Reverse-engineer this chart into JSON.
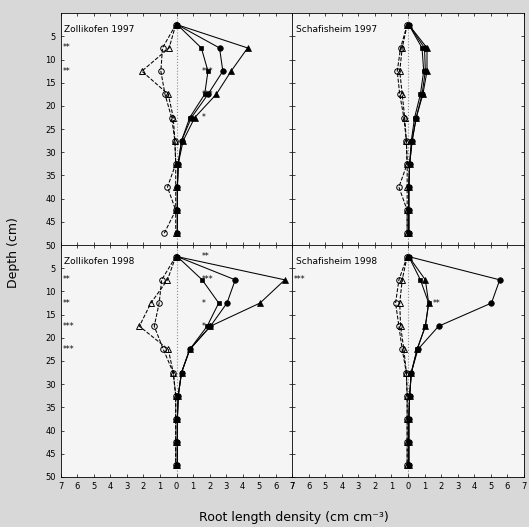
{
  "panels": [
    {
      "title": "Zollikofen 1997",
      "row": 0,
      "col": 0,
      "depths": [
        2.5,
        7.5,
        12.5,
        17.5,
        22.5,
        27.5,
        32.5,
        37.5,
        42.5,
        47.5
      ],
      "open_triangle": [
        0.05,
        0.45,
        2.1,
        0.5,
        0.2,
        0.1,
        0.05,
        0.05,
        0.05,
        0.05
      ],
      "open_circle": [
        0.05,
        0.85,
        0.95,
        0.7,
        0.3,
        0.1,
        0.05,
        0.55,
        0.05,
        0.75
      ],
      "filled_square": [
        0.05,
        1.5,
        1.9,
        1.7,
        0.8,
        0.3,
        0.1,
        0.05,
        0.05,
        0.05
      ],
      "filled_circle": [
        0.05,
        2.6,
        2.8,
        1.9,
        0.9,
        0.3,
        0.1,
        0.05,
        0.05,
        0.05
      ],
      "filled_triangle": [
        0.05,
        4.3,
        3.3,
        2.4,
        1.1,
        0.4,
        0.1,
        0.05,
        0.05,
        0.05
      ],
      "sig_left": [
        null,
        "**",
        "**",
        null,
        null,
        null,
        null,
        null,
        null,
        null
      ],
      "sig_right": [
        null,
        null,
        "***",
        "***",
        "*",
        null,
        null,
        null,
        null,
        null
      ]
    },
    {
      "title": "Schafisheim 1997",
      "row": 0,
      "col": 1,
      "depths": [
        2.5,
        7.5,
        12.5,
        17.5,
        22.5,
        27.5,
        32.5,
        37.5,
        42.5,
        47.5
      ],
      "open_triangle": [
        0.05,
        0.35,
        0.5,
        0.35,
        0.2,
        0.1,
        0.05,
        0.05,
        0.05,
        0.05
      ],
      "open_circle": [
        0.05,
        0.45,
        0.65,
        0.5,
        0.25,
        0.1,
        0.05,
        0.55,
        0.05,
        0.05
      ],
      "filled_square": [
        0.05,
        0.85,
        0.95,
        0.75,
        0.4,
        0.2,
        0.1,
        0.05,
        0.05,
        0.05
      ],
      "filled_circle": [
        0.05,
        1.0,
        1.05,
        0.85,
        0.5,
        0.25,
        0.1,
        0.05,
        0.05,
        0.05
      ],
      "filled_triangle": [
        0.05,
        1.15,
        1.15,
        0.9,
        0.5,
        0.25,
        0.1,
        0.05,
        0.05,
        0.05
      ],
      "sig_left": [
        null,
        null,
        null,
        null,
        null,
        null,
        null,
        null,
        null,
        null
      ],
      "sig_right": [
        null,
        null,
        null,
        null,
        null,
        null,
        null,
        null,
        null,
        null
      ]
    },
    {
      "title": "Zollikofen 1998",
      "row": 1,
      "col": 0,
      "depths": [
        2.5,
        7.5,
        12.5,
        17.5,
        22.5,
        27.5,
        32.5,
        37.5,
        42.5,
        47.5
      ],
      "open_triangle": [
        0.05,
        0.55,
        1.55,
        2.25,
        0.5,
        0.2,
        0.05,
        0.05,
        0.05,
        0.05
      ],
      "open_circle": [
        0.05,
        0.9,
        1.05,
        1.35,
        0.8,
        0.2,
        0.05,
        0.05,
        0.05,
        0.05
      ],
      "filled_square": [
        0.05,
        1.55,
        2.55,
        1.85,
        0.8,
        0.3,
        0.1,
        0.05,
        0.05,
        0.05
      ],
      "filled_circle": [
        0.05,
        3.55,
        3.05,
        2.05,
        0.8,
        0.3,
        0.1,
        0.05,
        0.05,
        0.05
      ],
      "filled_triangle": [
        0.05,
        6.55,
        5.05,
        2.05,
        0.8,
        0.3,
        0.1,
        0.05,
        0.05,
        0.05
      ],
      "sig_left": [
        null,
        "**",
        "**",
        "***",
        "***",
        null,
        null,
        null,
        null,
        null
      ],
      "sig_right": [
        "**",
        "***",
        "*",
        "*",
        null,
        null,
        null,
        null,
        null,
        null
      ]
    },
    {
      "title": "Schafisheim 1998",
      "row": 1,
      "col": 1,
      "depths": [
        2.5,
        7.5,
        12.5,
        17.5,
        22.5,
        27.5,
        32.5,
        37.5,
        42.5,
        47.5
      ],
      "open_triangle": [
        0.05,
        0.35,
        0.5,
        0.45,
        0.25,
        0.1,
        0.05,
        0.05,
        0.05,
        0.05
      ],
      "open_circle": [
        0.05,
        0.55,
        0.75,
        0.55,
        0.35,
        0.1,
        0.05,
        0.05,
        0.05,
        0.05
      ],
      "filled_square": [
        0.05,
        0.75,
        1.25,
        1.05,
        0.55,
        0.2,
        0.1,
        0.05,
        0.05,
        0.05
      ],
      "filled_circle": [
        0.05,
        5.55,
        5.05,
        1.85,
        0.6,
        0.2,
        0.1,
        0.05,
        0.05,
        0.05
      ],
      "filled_triangle": [
        0.05,
        1.05,
        1.25,
        1.05,
        0.55,
        0.2,
        0.1,
        0.05,
        0.05,
        0.05
      ],
      "sig_left": [
        null,
        "***",
        null,
        null,
        null,
        null,
        null,
        null,
        null,
        null
      ],
      "sig_right": [
        null,
        null,
        "**",
        null,
        null,
        null,
        null,
        null,
        null,
        null
      ]
    }
  ],
  "xlim": 7,
  "depth_ticks": [
    5,
    10,
    15,
    20,
    25,
    30,
    35,
    40,
    45,
    50
  ],
  "ylabel": "Depth (cm)",
  "xlabel": "Root length density (cm cm⁻³)",
  "bg_color": "#d8d8d8",
  "panel_bg": "#f5f5f5"
}
